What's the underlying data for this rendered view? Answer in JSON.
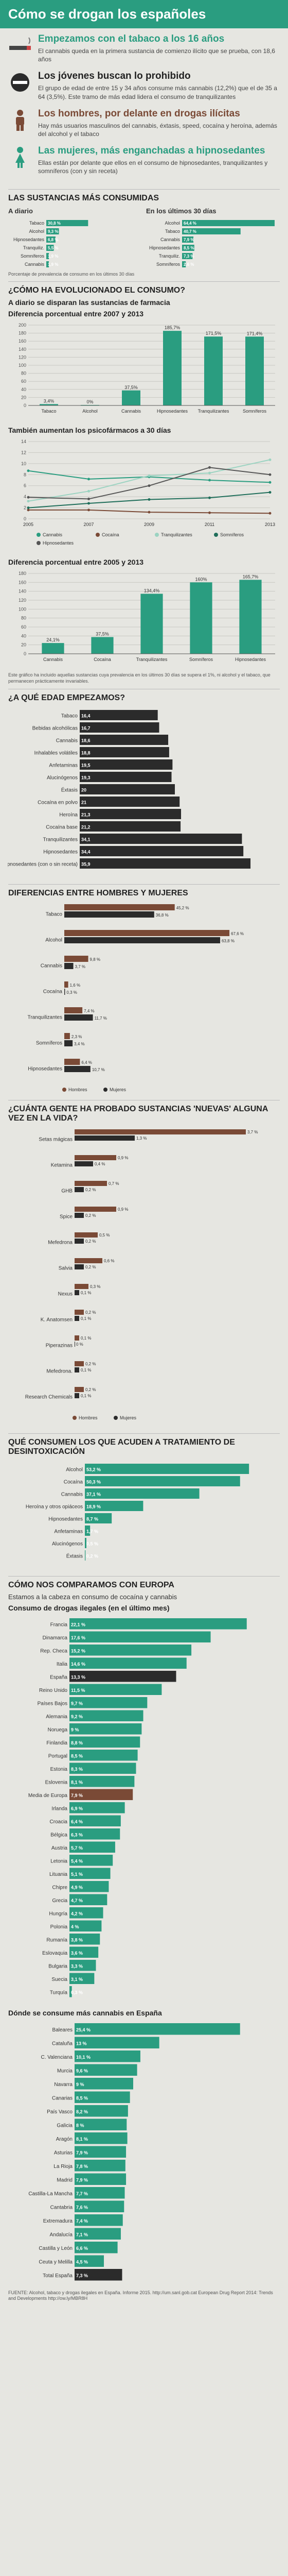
{
  "title": "Cómo se drogan los españoles",
  "colors": {
    "green": "#2a9d80",
    "brown": "#7a4a36",
    "dark": "#2b2b2b",
    "grey_bar": "#bfc4be"
  },
  "intro": [
    {
      "icon": "cigarette-icon",
      "heading": "Empezamos con el tabaco a los 16 años",
      "text": "El cannabis queda en la primera sustancia de comienzo ilícito que se prueba, con 18,6 años",
      "color": "green"
    },
    {
      "icon": "forbidden-icon",
      "heading": "Los jóvenes buscan lo prohibido",
      "text": "El grupo de edad de entre 15 y 34 años consume más cannabis (12,2%) que el de 35 a 64 (3,5%). Este tramo de más edad lidera el consumo de tranquilizantes",
      "color": "dark"
    },
    {
      "icon": "man-icon",
      "heading": "Los hombres, por delante en drogas ilícitas",
      "text": "Hay más usuarios masculinos del cannabis, éxtasis, speed, cocaína y heroína, además del alcohol y el tabaco",
      "color": "brown"
    },
    {
      "icon": "woman-icon",
      "heading": "Las mujeres, más enganchadas a hipnosedantes",
      "text": "Ellas están por delante que ellos en el consumo de hipnosedantes, tranquilizantes y somníferos (con y sin receta)",
      "color": "green"
    }
  ],
  "sections": {
    "most_consumed": "LAS SUSTANCIAS MÁS CONSUMIDAS",
    "a_diario": "A diario",
    "ultimos30": "En los últimos 30 días",
    "most_consumed_note": "Porcentaje de prevalencia de consumo en los últimos 30 días",
    "evolution": "¿CÓMO HA EVOLUCIONADO EL CONSUMO?",
    "evolution_sub": "A diario se disparan las sustancias de farmacia",
    "diff1": "Diferencia porcentual entre 2007 y 2013",
    "psico": "También aumentan los psicofármacos a 30 días",
    "diff2": "Diferencia porcentual entre 2005 y 2013",
    "diff2_note": "Este gráfico ha incluido aquellas sustancias cuya prevalencia en los últimos 30 días se supera el 1%, ni alcohol y el tabaco, que permanecen prácticamente invariables.",
    "age": "¿A QUÉ EDAD EMPEZAMOS?",
    "gender": "DIFERENCIAS ENTRE HOMBRES Y MUJERES",
    "tried": "¿CUÁNTA GENTE HA PROBADO SUSTANCIAS 'NUEVAS' ALGUNA VEZ EN LA VIDA?",
    "treatment": "QUÉ CONSUMEN LOS QUE ACUDEN A TRATAMIENTO DE DESINTOXICACIÓN",
    "europe": "CÓMO NOS COMPARAMOS CON EUROPA",
    "europe_lead": "Estamos a la cabeza en consumo de cocaína y cannabis",
    "europe_sub": "Consumo de drogas ilegales (en el último mes)",
    "cannabis_spain": "Dónde se consume más cannabis en España",
    "footer": "FUENTE: Alcohol, tabaco y drogas ilegales en España. Informe 2015. http://um.sanl.gob.cat European Drug Report 2014: Trends and Developments http://ow.ly/MBR8H"
  },
  "chart_data": [
    {
      "type": "bar",
      "title": "A diario",
      "categories": [
        "Tabaco",
        "Alcohol",
        "Hipnosedantes",
        "Tranquiliz.",
        "Somníferos",
        "Cannabis"
      ],
      "values": [
        30.8,
        9.3,
        6.8,
        5.5,
        1.9,
        1.9
      ]
    },
    {
      "type": "bar",
      "title": "En los últimos 30 días",
      "categories": [
        "Alcohol",
        "Tabaco",
        "Cannabis",
        "Hipnosedantes",
        "Tranquiliz.",
        "Somníferos"
      ],
      "values": [
        64.4,
        40.7,
        7.9,
        8.5,
        7.3,
        2.6
      ]
    },
    {
      "type": "bar",
      "title": "Diferencia porcentual entre 2007 y 2013",
      "categories": [
        "Tabaco",
        "Alcohol",
        "Cannabis",
        "Hipnosedantes",
        "Tranquilizantes",
        "Somníferos"
      ],
      "values": [
        3.4,
        0,
        37.5,
        185.7,
        171.5,
        171.4
      ],
      "ylim": [
        0,
        200
      ]
    },
    {
      "type": "line",
      "title": "También aumentan los psicofármacos a 30 días",
      "x": [
        "2005",
        "2007",
        "2009",
        "2011",
        "2013"
      ],
      "ylim": [
        0,
        14
      ],
      "series": [
        {
          "name": "Cannabis",
          "values": [
            8.7,
            7.2,
            7.6,
            7.0,
            6.6
          ]
        },
        {
          "name": "Cocaína",
          "values": [
            1.6,
            1.6,
            1.2,
            1.1,
            1.0
          ]
        },
        {
          "name": "Tranquilizantes",
          "values": [
            3.2,
            5.0,
            7.8,
            8.3,
            10.7
          ]
        },
        {
          "name": "Somníferos",
          "values": [
            2.0,
            2.8,
            3.5,
            3.8,
            4.8
          ]
        },
        {
          "name": "Hipnosedantes",
          "values": [
            3.9,
            3.6,
            6.0,
            9.3,
            8.0
          ]
        }
      ]
    },
    {
      "type": "bar",
      "title": "Diferencia porcentual entre 2005 y 2013",
      "categories": [
        "Cannabis",
        "Cocaína",
        "Tranquilizantes",
        "Somníferos",
        "Hipnosedantes"
      ],
      "values": [
        24.1,
        37.5,
        134.4,
        160.0,
        165.7
      ],
      "ylim": [
        0,
        180
      ]
    },
    {
      "type": "bar",
      "title": "¿A qué edad empezamos?",
      "categories": [
        "Tabaco",
        "Bebidas alcohólicas",
        "Cannabis",
        "Inhalables volátiles",
        "Anfetaminas",
        "Alucinógenos",
        "Éxtasis",
        "Cocaína en polvo",
        "Heroína",
        "Cocaína base",
        "Tranquilizantes",
        "Hipnosedantes",
        "Hipnosedantes (con o sin receta)"
      ],
      "values": [
        16.4,
        16.7,
        18.6,
        18.8,
        19.5,
        19.3,
        20.0,
        21.0,
        21.3,
        21.2,
        34.1,
        34.4,
        35.9
      ],
      "xlim": [
        0,
        40
      ]
    },
    {
      "type": "bar",
      "title": "Diferencias entre hombres y mujeres",
      "categories": [
        "Tabaco",
        "Alcohol",
        "Cannabis",
        "Cocaína",
        "Tranquilizantes",
        "Somníferos",
        "Hipnosedantes"
      ],
      "series": [
        {
          "name": "Hombres",
          "values": [
            45.2,
            67.6,
            9.8,
            1.6,
            7.4,
            2.3,
            6.4
          ]
        },
        {
          "name": "Mujeres",
          "values": [
            36.8,
            63.8,
            3.7,
            0.3,
            11.7,
            3.4,
            10.7
          ]
        }
      ],
      "xlim": [
        0,
        80
      ]
    },
    {
      "type": "bar",
      "title": "¿Cuánta gente ha probado sustancias nuevas?",
      "categories": [
        "Setas mágicas",
        "Ketamina",
        "GHB",
        "Spice",
        "Mefedrona",
        "Salvia",
        "Nexus",
        "K. Anatomsen",
        "Piperazinas",
        "Mefedrona.",
        "Research Chemicals"
      ],
      "series": [
        {
          "name": "Hombres",
          "values": [
            3.7,
            0.9,
            0.7,
            0.9,
            0.5,
            0.6,
            0.3,
            0.2,
            0.1,
            0.2,
            0.2
          ]
        },
        {
          "name": "Mujeres",
          "values": [
            1.3,
            0.4,
            0.2,
            0.2,
            0.2,
            0.2,
            0.1,
            0.1,
            0.0,
            0.1,
            0.1
          ]
        }
      ],
      "xlim": [
        0,
        4
      ]
    },
    {
      "type": "bar",
      "title": "Qué consumen los que acuden a tratamiento",
      "categories": [
        "Alcohol",
        "Cocaína",
        "Cannabis",
        "Heroína y otros opiáceos",
        "Hipnosedantes",
        "Anfetaminas",
        "Alucinógenos",
        "Éxtasis"
      ],
      "values": [
        53.2,
        50.3,
        37.1,
        18.9,
        8.7,
        1.7,
        0.5,
        0.2
      ]
    },
    {
      "type": "bar",
      "title": "Consumo de drogas ilegales (en el último mes)",
      "categories": [
        "Francia",
        "Dinamarca",
        "Rep. Checa",
        "Italia",
        "España",
        "Reino Unido",
        "Países Bajos",
        "Alemania",
        "Noruega",
        "Finlandia",
        "Portugal",
        "Estonia",
        "Eslovenia",
        "Media de Europa",
        "Irlanda",
        "Croacia",
        "Bélgica",
        "Austria",
        "Letonia",
        "Lituania",
        "Chipre",
        "Grecia",
        "Hungría",
        "Polonia",
        "Rumanía",
        "Eslovaquia",
        "Bulgaria",
        "Suecia",
        "Turquía"
      ],
      "values": [
        22.1,
        17.6,
        15.2,
        14.6,
        13.3,
        11.5,
        9.7,
        9.2,
        9.0,
        8.8,
        8.5,
        8.3,
        8.1,
        7.9,
        6.9,
        6.4,
        6.3,
        5.7,
        5.4,
        5.1,
        4.9,
        4.7,
        4.2,
        4.0,
        3.8,
        3.6,
        3.3,
        3.1,
        0.3
      ],
      "xlim": [
        0,
        25
      ]
    },
    {
      "type": "bar",
      "title": "Dónde se consume más cannabis en España",
      "categories": [
        "Baleares",
        "Cataluña",
        "C. Valenciana",
        "Murcia",
        "Navarra",
        "Canarias",
        "País Vasco",
        "Galicia",
        "Aragón",
        "Asturias",
        "La Rioja",
        "Madrid",
        "Castilla-La Mancha",
        "Cantabria",
        "Extremadura",
        "Andalucía",
        "Castilla y León",
        "Ceuta y Melilla",
        "Total España"
      ],
      "values": [
        25.4,
        13.0,
        10.1,
        9.6,
        9.0,
        8.5,
        8.2,
        8.0,
        8.1,
        7.9,
        7.8,
        7.9,
        7.7,
        7.6,
        7.4,
        7.1,
        6.6,
        4.5,
        7.3
      ],
      "xlim": [
        0,
        30
      ]
    }
  ]
}
